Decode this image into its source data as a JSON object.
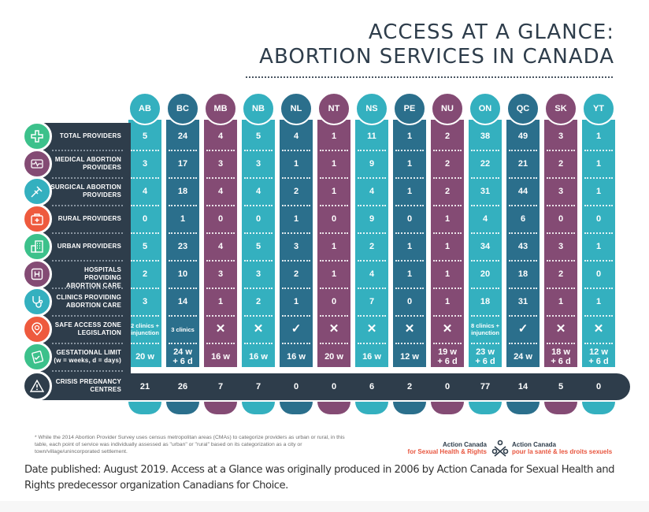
{
  "title": {
    "line1": "ACCESS AT A GLANCE:",
    "line2": "ABORTION SERVICES IN CANADA"
  },
  "colors": {
    "teal": "#34b0bf",
    "blue": "#2b6f8c",
    "purple": "#844b74",
    "dark": "#2e3d4b",
    "green": "#3cc18b",
    "orange": "#ee5a3e"
  },
  "rows": [
    {
      "label_lines": [
        "TOTAL PROVIDERS"
      ],
      "icon": "plus-cross-icon",
      "icon_color": "#3cc18b"
    },
    {
      "label_lines": [
        "MEDICAL ABORTION",
        "PROVIDERS"
      ],
      "icon": "heart-monitor-icon",
      "icon_color": "#844b74"
    },
    {
      "label_lines": [
        "SURGICAL ABORTION",
        "PROVIDERS"
      ],
      "icon": "syringe-icon",
      "icon_color": "#34b0bf"
    },
    {
      "label_lines": [
        "RURAL PROVIDERS"
      ],
      "icon": "first-aid-kit-icon",
      "icon_color": "#ee5a3e"
    },
    {
      "label_lines": [
        "URBAN PROVIDERS"
      ],
      "icon": "buildings-icon",
      "icon_color": "#3cc18b"
    },
    {
      "label_lines": [
        "HOSPITALS PROVIDING",
        "ABORTION CARE"
      ],
      "icon": "hospital-icon",
      "icon_color": "#844b74"
    },
    {
      "label_lines": [
        "CLINICS PROVIDING",
        "ABORTION CARE"
      ],
      "icon": "stethoscope-icon",
      "icon_color": "#34b0bf"
    },
    {
      "label_lines": [
        "SAFE ACCESS ZONE",
        "LEGISLATION"
      ],
      "icon": "location-pin-icon",
      "icon_color": "#ee5a3e"
    },
    {
      "label_lines": [
        "GESTATIONAL LIMIT",
        "(w = weeks, d = days)"
      ],
      "icon": "clipboard-check-icon",
      "icon_color": "#3cc18b"
    },
    {
      "label_lines": [
        "CRISIS PREGNANCY",
        "CENTRES"
      ],
      "icon": "warning-triangle-icon",
      "icon_color": "#2e3d4b"
    }
  ],
  "chart_data": {
    "type": "table",
    "title": "Access at a Glance: Abortion Services in Canada",
    "columns": [
      "AB",
      "BC",
      "MB",
      "NB",
      "NL",
      "NT",
      "NS",
      "PE",
      "NU",
      "ON",
      "QC",
      "SK",
      "YT"
    ],
    "column_colors": [
      "teal",
      "blue",
      "purple",
      "teal",
      "blue",
      "purple",
      "teal",
      "blue",
      "purple",
      "teal",
      "blue",
      "purple",
      "teal"
    ],
    "row_headers": [
      "Total providers",
      "Medical abortion providers",
      "Surgical abortion providers",
      "Rural providers",
      "Urban providers",
      "Hospitals providing abortion care",
      "Clinics providing abortion care",
      "Safe access zone legislation",
      "Gestational limit (w = weeks, d = days)",
      "Crisis pregnancy centres"
    ],
    "values": [
      [
        "5",
        "24",
        "4",
        "5",
        "4",
        "1",
        "11",
        "1",
        "2",
        "38",
        "49",
        "3",
        "1"
      ],
      [
        "3",
        "17",
        "3",
        "3",
        "1",
        "1",
        "9",
        "1",
        "2",
        "22",
        "21",
        "2",
        "1"
      ],
      [
        "4",
        "18",
        "4",
        "4",
        "2",
        "1",
        "4",
        "1",
        "2",
        "31",
        "44",
        "3",
        "1"
      ],
      [
        "0",
        "1",
        "0",
        "0",
        "1",
        "0",
        "9",
        "0",
        "1",
        "4",
        "6",
        "0",
        "0"
      ],
      [
        "5",
        "23",
        "4",
        "5",
        "3",
        "1",
        "2",
        "1",
        "1",
        "34",
        "43",
        "3",
        "1"
      ],
      [
        "2",
        "10",
        "3",
        "3",
        "2",
        "1",
        "4",
        "1",
        "1",
        "20",
        "18",
        "2",
        "0"
      ],
      [
        "3",
        "14",
        "1",
        "2",
        "1",
        "0",
        "7",
        "0",
        "1",
        "18",
        "31",
        "1",
        "1"
      ],
      [
        "2 clinics + injunction",
        "3 clinics",
        "✕",
        "✕",
        "✓",
        "✕",
        "✕",
        "✕",
        "✕",
        "8 clinics + injunction",
        "✓",
        "✕",
        "✕"
      ],
      [
        "20 w",
        "24 w + 6 d",
        "16 w",
        "16 w",
        "16 w",
        "20 w",
        "16 w",
        "12 w",
        "19 w + 6 d",
        "23 w + 6 d",
        "24 w",
        "18 w + 6 d",
        "12 w + 6 d"
      ],
      [
        "21",
        "26",
        "7",
        "7",
        "0",
        "0",
        "6",
        "2",
        "0",
        "77",
        "14",
        "5",
        "0"
      ]
    ]
  },
  "footnote": "* While the 2014 Abortion Provider Survey uses census metropolitan areas (CMAs) to categorize providers as urban or rural, in this table, each point of service was individually assessed as \"urban\" or \"rural\" based on its categorization as a city or town/village/unincorporated settlement.",
  "logo": {
    "en_line1": "Action Canada",
    "en_line2": "for Sexual Health & Rights",
    "fr_line1": "Action Canada",
    "fr_line2": "pour la santé & les droits sexuels"
  },
  "caption": "Date published: August 2019. Access at a Glance was originally produced in 2006 by Action Canada for Sexual Health and Rights predecessor organization Canadians for Choice."
}
